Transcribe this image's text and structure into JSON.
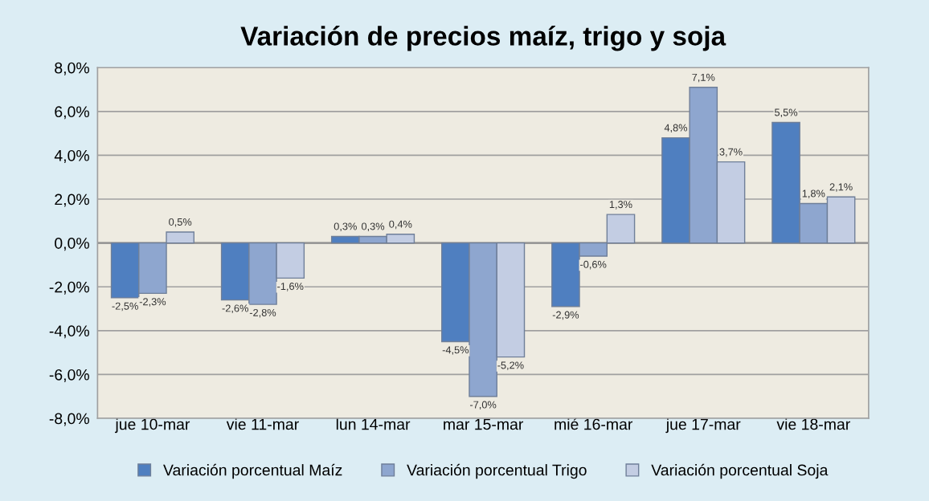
{
  "chart_data": {
    "type": "bar",
    "title": "Variación de precios maíz, trigo y soja",
    "categories": [
      "jue 10-mar",
      "vie 11-mar",
      "lun 14-mar",
      "mar 15-mar",
      "mié 16-mar",
      "jue 17-mar",
      "vie 18-mar"
    ],
    "series": [
      {
        "name": "Variación porcentual Maíz",
        "color": "#4f7fc0",
        "values": [
          -2.5,
          -2.6,
          0.3,
          -4.5,
          -2.9,
          4.8,
          5.5
        ],
        "value_labels": [
          "-2,5%",
          "-2,6%",
          "0,3%",
          "-4,5%",
          "-2,9%",
          "4,8%",
          "5,5%"
        ]
      },
      {
        "name": "Variación porcentual Trigo",
        "color": "#8ea6cf",
        "values": [
          -2.3,
          -2.8,
          0.3,
          -7.0,
          -0.6,
          7.1,
          1.8
        ],
        "value_labels": [
          "-2,3%",
          "-2,8%",
          "0,3%",
          "-7,0%",
          "-0,6%",
          "7,1%",
          "1,8%"
        ]
      },
      {
        "name": "Variación porcentual Soja",
        "color": "#c3cde3",
        "values": [
          0.5,
          -1.6,
          0.4,
          -5.2,
          1.3,
          3.7,
          2.1
        ],
        "value_labels": [
          "0,5%",
          "-1,6%",
          "0,4%",
          "-5,2%",
          "1,3%",
          "3,7%",
          "2,1%"
        ]
      }
    ],
    "ylim": [
      -8,
      8
    ],
    "yticks": [
      {
        "value": -8,
        "label": "-8,0%"
      },
      {
        "value": -6,
        "label": "-6,0%"
      },
      {
        "value": -4,
        "label": "-4,0%"
      },
      {
        "value": -2,
        "label": "-2,0%"
      },
      {
        "value": 0,
        "label": "0,0%"
      },
      {
        "value": 2,
        "label": "2,0%"
      },
      {
        "value": 4,
        "label": "4,0%"
      },
      {
        "value": 6,
        "label": "6,0%"
      },
      {
        "value": 8,
        "label": "8,0%"
      }
    ],
    "grid": "y",
    "legend": "bottom"
  }
}
